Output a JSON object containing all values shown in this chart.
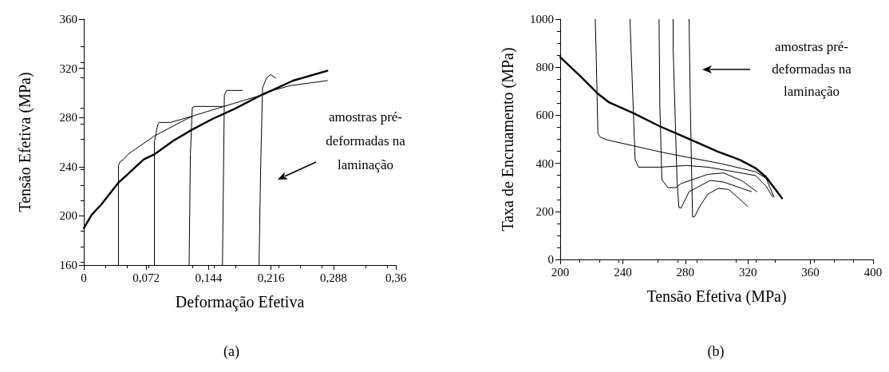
{
  "chart_data": [
    {
      "type": "line",
      "xlabel": "Deformação Efetiva",
      "ylabel": "Tensão Efetiva (MPa)",
      "xlim": [
        0,
        0.36
      ],
      "ylim": [
        160,
        360
      ],
      "xticks": [
        0,
        {
          "value": 0.072,
          "label": "0,072"
        },
        {
          "value": 0.144,
          "label": "0,144"
        },
        {
          "value": 0.216,
          "label": "0,216"
        },
        {
          "value": 0.288,
          "label": "0,288"
        },
        {
          "value": 0.36,
          "label": "0,36"
        }
      ],
      "yticks": [
        160,
        200,
        240,
        280,
        320,
        360
      ],
      "grid": false,
      "marker": "none",
      "line_style": "solid",
      "series": [
        {
          "color": "#000000",
          "x": [
            0,
            0.0092,
            0.02,
            0.0277,
            0.04,
            0.0508,
            0.0692,
            0.0815,
            0.103,
            0.1246,
            0.149,
            0.174,
            0.204,
            0.2077,
            0.2415,
            0.281
          ],
          "values": [
            190,
            201,
            209,
            216,
            227,
            234,
            246,
            250,
            261,
            270,
            279,
            287,
            298,
            299,
            310,
            318
          ]
        },
        {
          "color": "#000000",
          "x": [
            0.04,
            0.04,
            0.042,
            0.046,
            0.0508,
            0.0815,
            0.1246,
            0.1615,
            0.204,
            0.2077,
            0.2385,
            0.281
          ],
          "values": [
            160,
            241,
            244,
            246,
            250,
            265,
            281,
            289,
            298,
            300,
            306,
            310
          ]
        },
        {
          "color": "#000000",
          "x": [
            0.0815,
            0.0815,
            0.0852,
            0.0868,
            0.1,
            0.1246
          ],
          "values": [
            160,
            260,
            274,
            276,
            276,
            281
          ]
        },
        {
          "color": "#000000",
          "x": [
            0.1215,
            0.123,
            0.1252,
            0.128,
            0.1615
          ],
          "values": [
            160,
            250,
            288,
            289,
            289
          ]
        },
        {
          "color": "#000000",
          "x": [
            0.16,
            0.1622,
            0.1646,
            0.171,
            0.183
          ],
          "values": [
            160,
            298,
            302,
            302,
            302
          ]
        },
        {
          "color": "#000000",
          "x": [
            0.2022,
            0.204,
            0.2062,
            0.2108,
            0.2154,
            0.2215
          ],
          "values": [
            160,
            237,
            304,
            312,
            315,
            312
          ]
        }
      ],
      "annotations": [
        "amostras pré-\ndeformadas na\nlaminação",
        "(a)"
      ]
    },
    {
      "type": "line",
      "xlabel": "Tensão Efetiva (MPa)",
      "ylabel": "Taxa de Encruamento (MPa)",
      "xlim": [
        200,
        400
      ],
      "ylim": [
        0,
        1000
      ],
      "xticks": [
        200,
        240,
        280,
        320,
        360,
        400
      ],
      "yticks": [
        0,
        200,
        400,
        600,
        800,
        1000
      ],
      "grid": false,
      "marker": "none",
      "line_style": "solid",
      "series": [
        {
          "color": "#000000",
          "x": [
            200,
            212.7,
            223.7,
            231.4,
            246.7,
            263.7,
            280.7,
            301,
            314.7,
            324.9,
            331.6,
            341.8
          ],
          "values": [
            842,
            764,
            692,
            653,
            609,
            554,
            506,
            448,
            415,
            380,
            343,
            255
          ]
        },
        {
          "color": "#000000",
          "x": [
            222.4,
            222.9,
            224.1,
            225.5,
            229.7,
            246.7,
            263.7,
            280.7,
            302.7,
            324.9,
            331.6,
            336.7
          ],
          "values": [
            1000,
            880,
            526,
            509,
            498,
            473,
            448,
            426,
            399,
            365,
            338,
            260
          ]
        },
        {
          "color": "#000000",
          "x": [
            244.6,
            245.9,
            247.9,
            250.1,
            263.7,
            280.7,
            294.3,
            311.3,
            324.9,
            331.6,
            335.9
          ],
          "values": [
            1000,
            770,
            415,
            384,
            384,
            391,
            384,
            365,
            349,
            305,
            260
          ]
        },
        {
          "color": "#000000",
          "x": [
            263.2,
            263.7,
            265,
            268.8,
            273.9,
            277.3,
            294.3,
            304.5,
            316.3,
            325.7
          ],
          "values": [
            1000,
            637,
            332,
            299,
            299,
            316,
            354,
            360,
            327,
            282
          ]
        },
        {
          "color": "#000000",
          "x": [
            272.2,
            272.2,
            274.7,
            275.9,
            277.3,
            282.4,
            296,
            304.5,
            314.7,
            322.3
          ],
          "values": [
            1000,
            880,
            327,
            216,
            214,
            282,
            329,
            322,
            299,
            282
          ]
        },
        {
          "color": "#000000",
          "x": [
            282.4,
            283.2,
            284.6,
            285.8,
            289.2,
            294.3,
            301,
            307.8,
            319.8
          ],
          "values": [
            1000,
            637,
            177,
            177,
            221,
            271,
            296,
            291,
            221
          ]
        }
      ],
      "annotations": [
        "amostras pré-\ndeformadas na\nlaminação",
        "(b)"
      ]
    }
  ]
}
